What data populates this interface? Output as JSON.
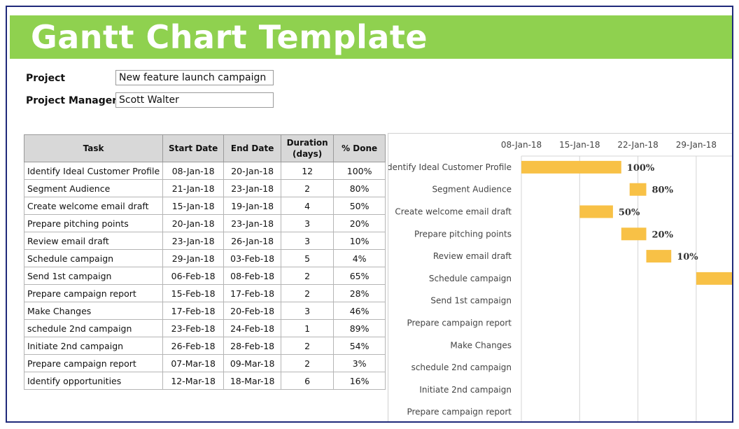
{
  "header": {
    "title": "Gantt Chart Template"
  },
  "project": {
    "project_label": "Project",
    "project_value": "New feature launch campaign",
    "manager_label": "Project Manager",
    "manager_value": "Scott Walter"
  },
  "table": {
    "columns": [
      "Task",
      "Start Date",
      "End Date",
      "Duration\n(days)",
      "% Done"
    ],
    "rows": [
      [
        "Identify Ideal Customer Profile",
        "08-Jan-18",
        "20-Jan-18",
        "12",
        "100%"
      ],
      [
        "Segment Audience",
        "21-Jan-18",
        "23-Jan-18",
        "2",
        "80%"
      ],
      [
        "Create welcome email draft",
        "15-Jan-18",
        "19-Jan-18",
        "4",
        "50%"
      ],
      [
        "Prepare pitching points",
        "20-Jan-18",
        "23-Jan-18",
        "3",
        "20%"
      ],
      [
        "Review email draft",
        "23-Jan-18",
        "26-Jan-18",
        "3",
        "10%"
      ],
      [
        "Schedule campaign",
        "29-Jan-18",
        "03-Feb-18",
        "5",
        "4%"
      ],
      [
        "Send 1st campaign",
        "06-Feb-18",
        "08-Feb-18",
        "2",
        "65%"
      ],
      [
        "Prepare campaign report",
        "15-Feb-18",
        "17-Feb-18",
        "2",
        "28%"
      ],
      [
        "Make Changes",
        "17-Feb-18",
        "20-Feb-18",
        "3",
        "46%"
      ],
      [
        "schedule 2nd campaign",
        "23-Feb-18",
        "24-Feb-18",
        "1",
        "89%"
      ],
      [
        "Initiate 2nd campaign",
        "26-Feb-18",
        "28-Feb-18",
        "2",
        "54%"
      ],
      [
        "Prepare campaign report",
        "07-Mar-18",
        "09-Mar-18",
        "2",
        "3%"
      ],
      [
        "Identify opportunities",
        "12-Mar-18",
        "18-Mar-18",
        "6",
        "16%"
      ]
    ]
  },
  "chart_data": {
    "type": "bar",
    "orientation": "horizontal",
    "x_tick_labels": [
      "08-Jan-18",
      "15-Jan-18",
      "22-Jan-18",
      "29-Jan-18"
    ],
    "x_axis_position": "top",
    "grid": true,
    "bar_color": "#f8c146",
    "categories": [
      "Identify Ideal Customer Profile",
      "Segment Audience",
      "Create welcome email draft",
      "Prepare pitching points",
      "Review email draft",
      "Schedule campaign",
      "Send 1st campaign",
      "Prepare campaign report",
      "Make Changes",
      "schedule 2nd campaign",
      "Initiate 2nd campaign",
      "Prepare campaign report"
    ],
    "start": [
      "08-Jan-18",
      "21-Jan-18",
      "15-Jan-18",
      "20-Jan-18",
      "23-Jan-18",
      "29-Jan-18",
      "06-Feb-18",
      "15-Feb-18",
      "17-Feb-18",
      "23-Feb-18",
      "26-Feb-18",
      "07-Mar-18"
    ],
    "duration_days": [
      12,
      2,
      4,
      3,
      3,
      5,
      2,
      2,
      3,
      1,
      2,
      2
    ],
    "data_labels": [
      "100%",
      "80%",
      "50%",
      "20%",
      "10%",
      "",
      "",
      "",
      "",
      "",
      "",
      ""
    ]
  }
}
